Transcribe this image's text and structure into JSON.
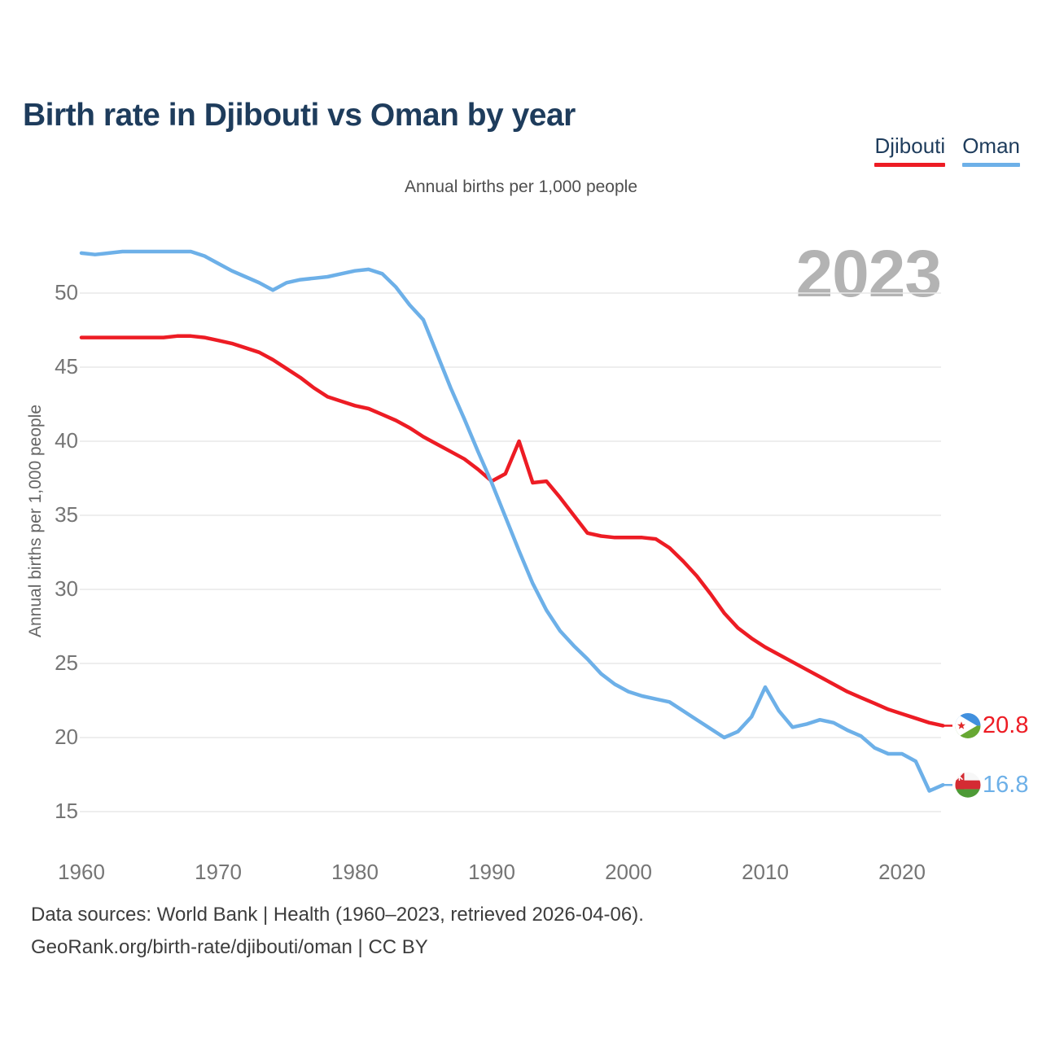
{
  "header": {
    "title": "Birth rate in Djibouti vs Oman by year"
  },
  "legend": {
    "items": [
      {
        "label": "Djibouti",
        "color": "#ed1c24"
      },
      {
        "label": "Oman",
        "color": "#6db0e8"
      }
    ]
  },
  "chart": {
    "subtitle": "Annual births per 1,000 people",
    "watermark": "2023"
  },
  "footer": {
    "line1": "Data sources: World Bank | Health (1960–2023, retrieved 2026-04-06).",
    "line2": "GeoRank.org/birth-rate/djibouti/oman | CC BY"
  },
  "colors": {
    "djibouti_red": "#ed1c24",
    "oman_blue": "#6db0e8",
    "title_navy": "#1e3c5c",
    "axis_gray": "#757575",
    "subtitle_gray": "#4f4f4f",
    "footer_gray": "#3d3d3d",
    "watermark_gray": "#b3b3b3",
    "grid_gray": "#e9e9e9"
  },
  "chart_data": {
    "type": "line",
    "title": "Birth rate in Djibouti vs Oman by year",
    "subtitle": "Annual births per 1,000 people",
    "xlabel": "",
    "ylabel": "Annual births per 1,000 people",
    "x": {
      "start": 1960,
      "end": 2023,
      "step": 1
    },
    "xticks": [
      1960,
      1970,
      1980,
      1990,
      2000,
      2010,
      2020
    ],
    "yticks": [
      15,
      20,
      25,
      30,
      35,
      40,
      45,
      50
    ],
    "ylim": [
      15,
      53.5
    ],
    "grid": "horizontal",
    "legend_position": "top-right",
    "series": [
      {
        "name": "Djibouti",
        "color": "#ed1c24",
        "end_label": "20.8",
        "flag": "djibouti",
        "values": [
          47,
          47,
          47,
          47,
          47,
          47,
          47,
          47.1,
          47.1,
          47,
          46.8,
          46.6,
          46.3,
          46,
          45.5,
          44.9,
          44.3,
          43.6,
          43,
          42.7,
          42.4,
          42.2,
          41.8,
          41.4,
          40.9,
          40.3,
          39.8,
          39.3,
          38.8,
          38.1,
          37.3,
          37.8,
          40,
          37.2,
          37.3,
          36.2,
          35,
          33.8,
          33.6,
          33.5,
          33.5,
          33.5,
          33.4,
          32.8,
          31.9,
          30.9,
          29.7,
          28.4,
          27.4,
          26.7,
          26.1,
          25.6,
          25.1,
          24.6,
          24.1,
          23.6,
          23.1,
          22.7,
          22.3,
          21.9,
          21.6,
          21.3,
          21,
          20.8
        ]
      },
      {
        "name": "Oman",
        "color": "#6db0e8",
        "end_label": "16.8",
        "flag": "oman",
        "values": [
          52.7,
          52.6,
          52.7,
          52.8,
          52.8,
          52.8,
          52.8,
          52.8,
          52.8,
          52.5,
          52,
          51.5,
          51.1,
          50.7,
          50.2,
          50.7,
          50.9,
          51,
          51.1,
          51.3,
          51.5,
          51.6,
          51.3,
          50.4,
          49.2,
          48.2,
          45.9,
          43.6,
          41.5,
          39.3,
          37.2,
          34.9,
          32.6,
          30.4,
          28.6,
          27.2,
          26.2,
          25.3,
          24.3,
          23.6,
          23.1,
          22.8,
          22.6,
          22.4,
          21.8,
          21.2,
          20.6,
          20,
          20.4,
          21.4,
          23.4,
          21.8,
          20.7,
          20.9,
          21.2,
          21,
          20.5,
          20.1,
          19.3,
          18.9,
          18.9,
          18.4,
          16.4,
          16.8
        ]
      }
    ]
  }
}
